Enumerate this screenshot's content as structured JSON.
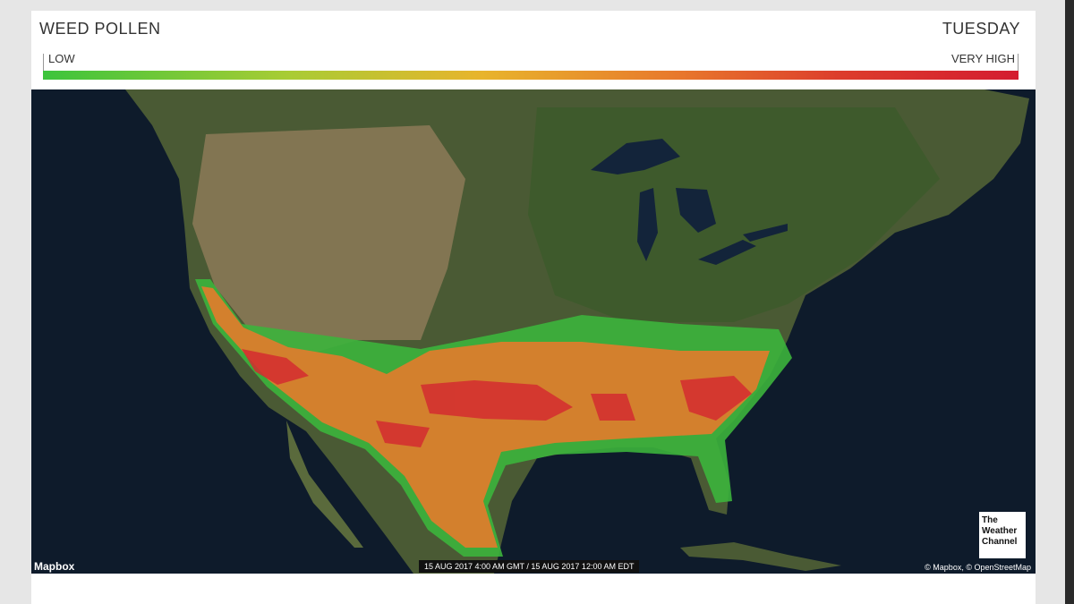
{
  "header": {
    "title": "WEED POLLEN",
    "day": "TUESDAY"
  },
  "legend": {
    "low": "LOW",
    "high": "VERY HIGH"
  },
  "map": {
    "credit": "Mapbox",
    "timestamp": "15 AUG 2017 4:00 AM GMT / 15 AUG 2017 12:00 AM EDT",
    "attribution": "© Mapbox, © OpenStreetMap"
  },
  "logo": {
    "lines": [
      "The",
      "Weather",
      "Channel"
    ]
  }
}
